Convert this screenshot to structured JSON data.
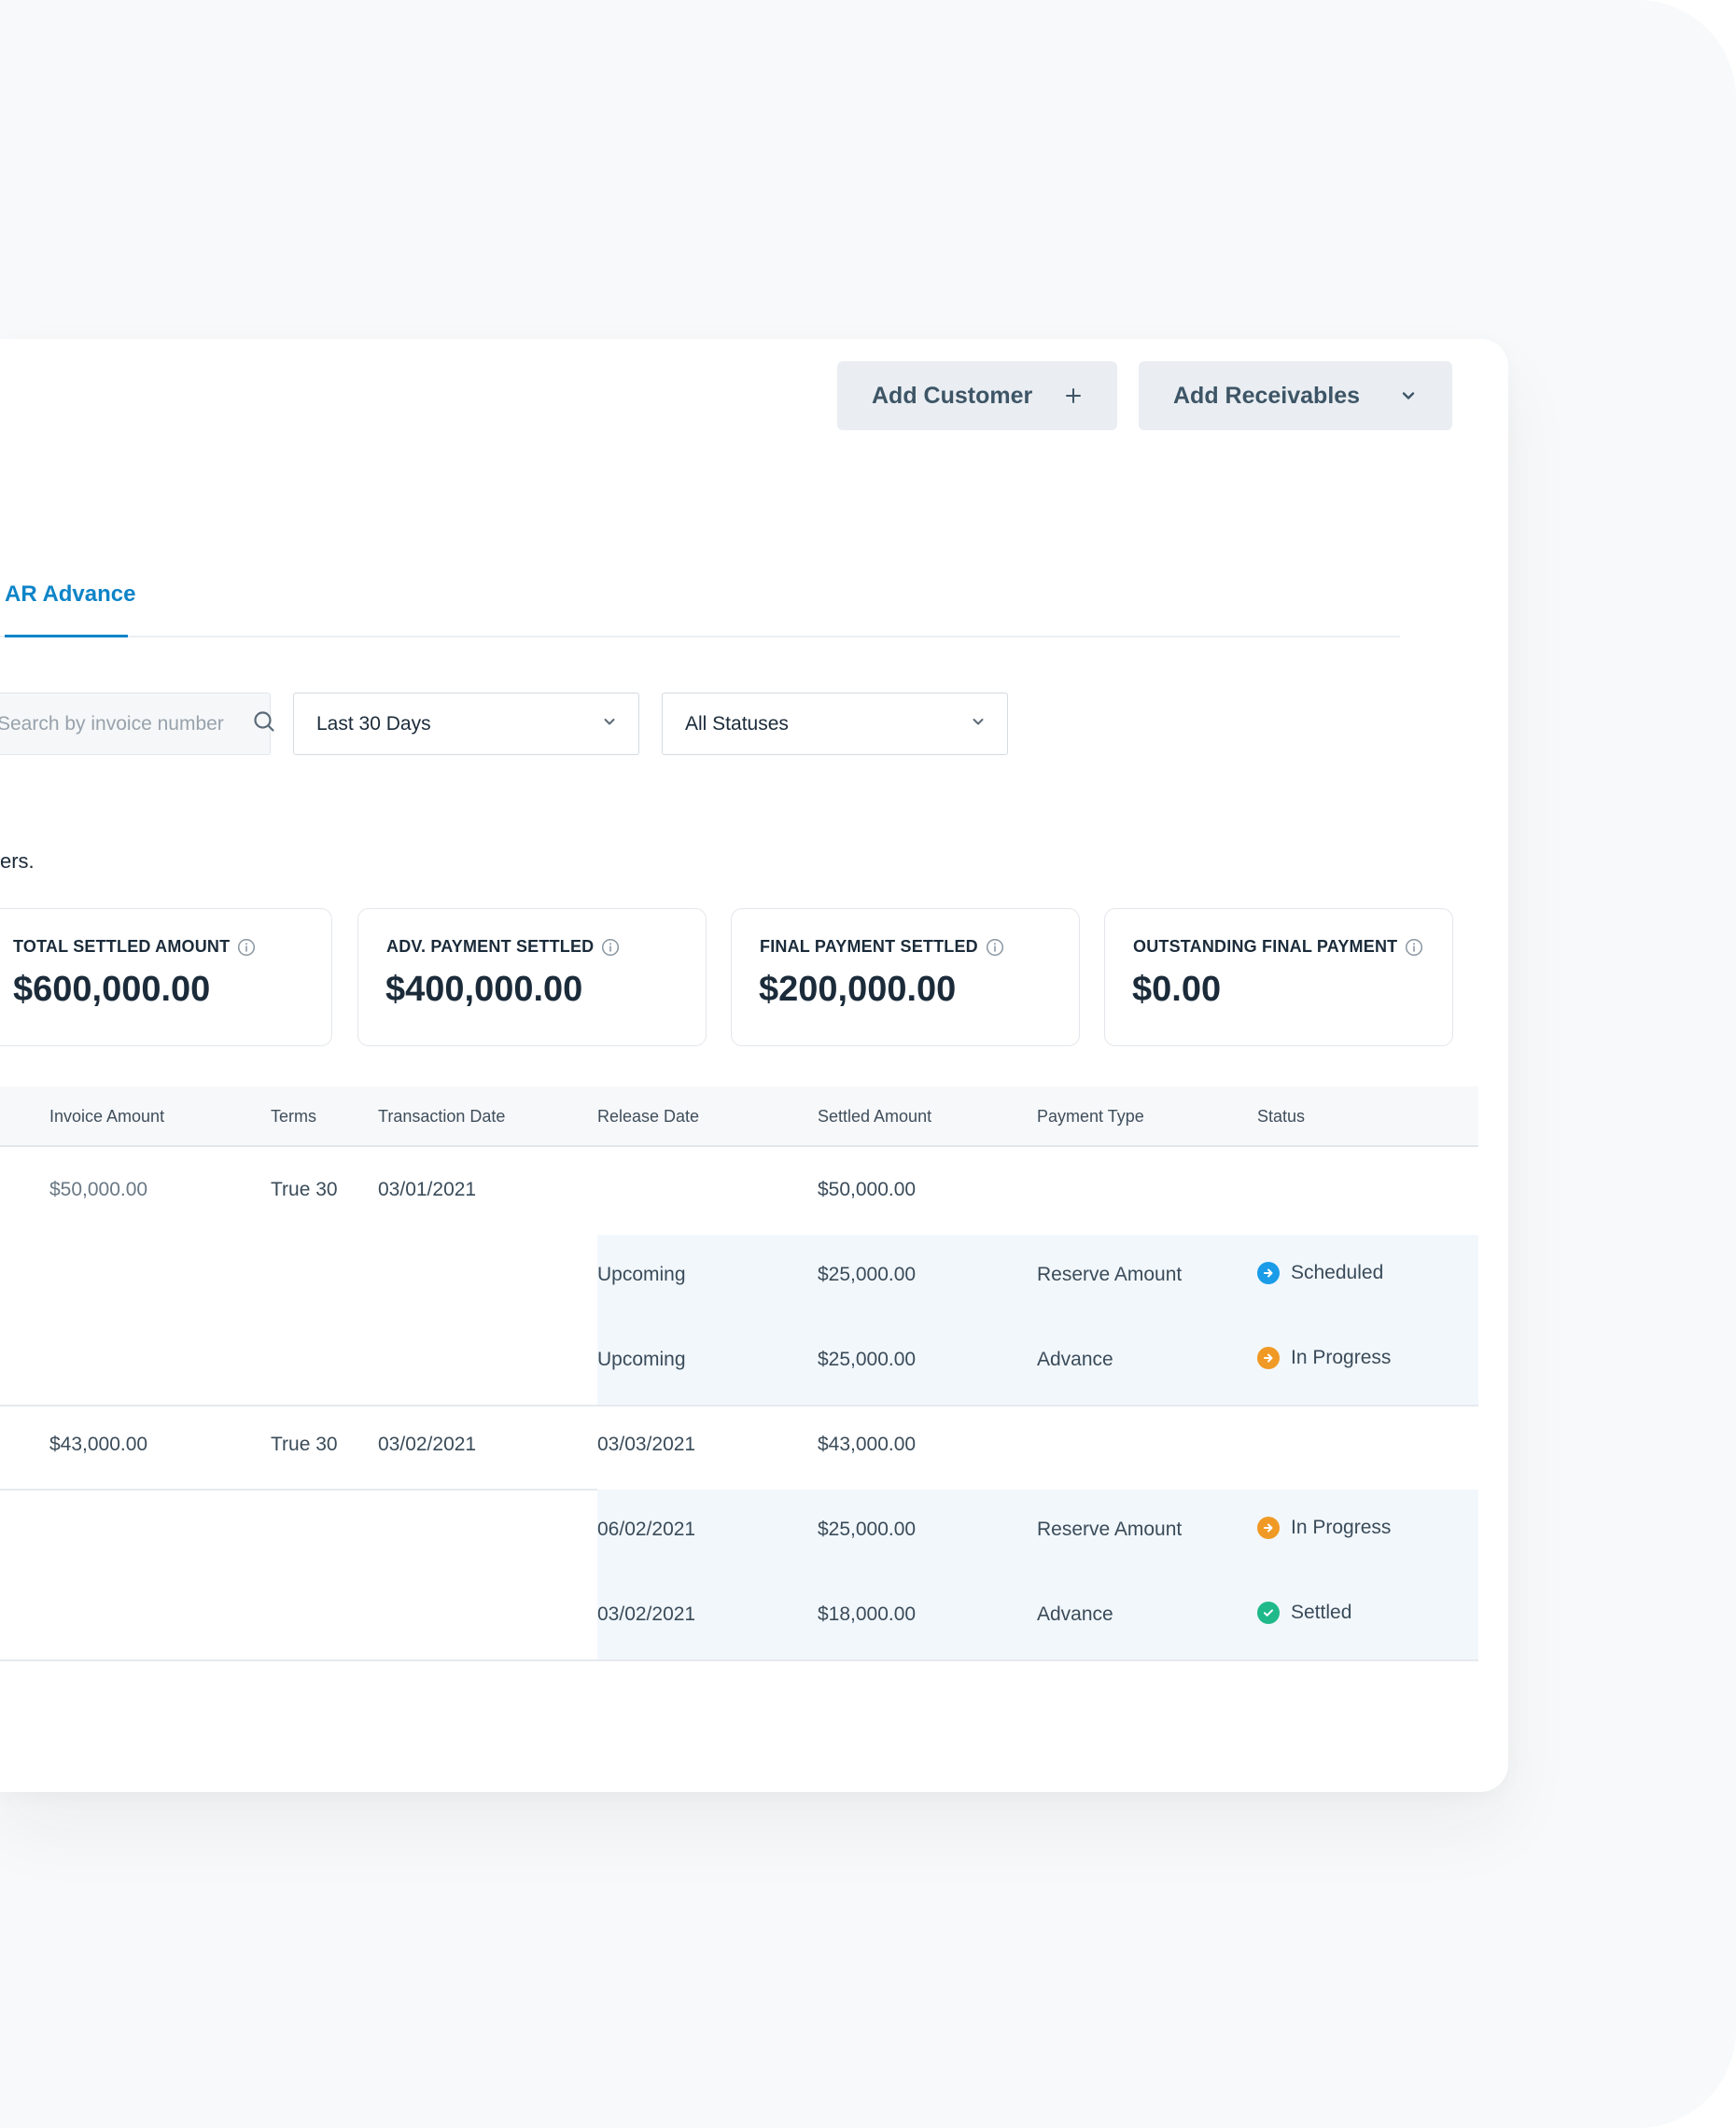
{
  "header": {
    "add_customer_label": "Add Customer",
    "add_receivables_label": "Add Receivables"
  },
  "tabs": {
    "active_label": "AR Advance"
  },
  "filters": {
    "search_placeholder": "Search by invoice number",
    "date_range": "Last 30 Days",
    "status": "All Statuses"
  },
  "description": "ers.",
  "summary_cards": [
    {
      "label": "TOTAL SETTLED AMOUNT",
      "value": "$600,000.00"
    },
    {
      "label": "ADV. PAYMENT SETTLED",
      "value": "$400,000.00"
    },
    {
      "label": "FINAL PAYMENT SETTLED",
      "value": "$200,000.00"
    },
    {
      "label": "OUTSTANDING FINAL PAYMENT",
      "value": "$0.00"
    }
  ],
  "table": {
    "columns": [
      "Invoice Amount",
      "Terms",
      "Transaction Date",
      "Release Date",
      "Settled Amount",
      "Payment Type",
      "Status"
    ],
    "rows": [
      {
        "invoice_amount": "$50,000.00",
        "terms": "True 30",
        "transaction_date": "03/01/2021",
        "release_date": "",
        "settled_amount": "$50,000.00",
        "sub_rows": [
          {
            "release_date": "Upcoming",
            "settled_amount": "$25,000.00",
            "payment_type": "Reserve Amount",
            "status": "Scheduled"
          },
          {
            "release_date": "Upcoming",
            "settled_amount": "$25,000.00",
            "payment_type": "Advance",
            "status": "In Progress"
          }
        ]
      },
      {
        "invoice_amount": "$43,000.00",
        "terms": "True 30",
        "transaction_date": "03/02/2021",
        "release_date": "03/03/2021",
        "settled_amount": "$43,000.00",
        "sub_rows": [
          {
            "release_date": "06/02/2021",
            "settled_amount": "$25,000.00",
            "payment_type": "Reserve Amount",
            "status": "In Progress"
          },
          {
            "release_date": "03/02/2021",
            "settled_amount": "$18,000.00",
            "payment_type": "Advance",
            "status": "Settled"
          }
        ]
      }
    ]
  },
  "colors": {
    "accent": "#0e84c8",
    "scheduled": "#1a9ce8",
    "in_progress": "#f09a25",
    "settled": "#1fb98a"
  }
}
